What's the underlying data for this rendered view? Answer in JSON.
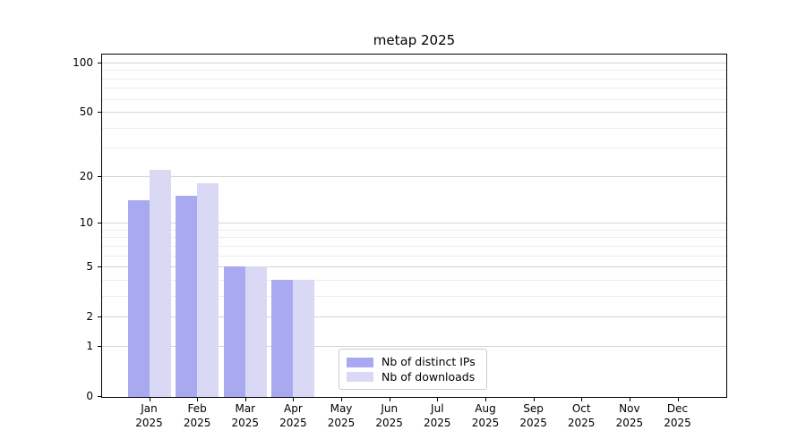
{
  "title": "metap 2025",
  "chart_data": {
    "type": "bar",
    "title": "metap 2025",
    "categories": [
      "Jan",
      "Feb",
      "Mar",
      "Apr",
      "May",
      "Jun",
      "Jul",
      "Aug",
      "Sep",
      "Oct",
      "Nov",
      "Dec"
    ],
    "category_year": "2025",
    "series": [
      {
        "name": "Nb of distinct IPs",
        "color": "#a9a9f2",
        "values": [
          14,
          15,
          5,
          4,
          0,
          0,
          0,
          0,
          0,
          0,
          0,
          0
        ]
      },
      {
        "name": "Nb of downloads",
        "color": "#d9d9f6",
        "values": [
          22,
          18,
          5,
          4,
          0,
          0,
          0,
          0,
          0,
          0,
          0,
          0
        ]
      }
    ],
    "xlabel": "",
    "ylabel": "",
    "yscale": "log1p",
    "ylim": [
      0,
      112
    ],
    "yticks": [
      0,
      1,
      2,
      5,
      10,
      20,
      50,
      100
    ],
    "minor_yticks": [
      3,
      4,
      6,
      7,
      8,
      9,
      30,
      40,
      60,
      70,
      80,
      90
    ],
    "grid": "horizontal",
    "legend_position": "lower-center-inside",
    "colors": {
      "major_grid": "#d4d4d4",
      "minor_grid": "#ececec",
      "spine": "#000000",
      "text": "#000000"
    }
  }
}
